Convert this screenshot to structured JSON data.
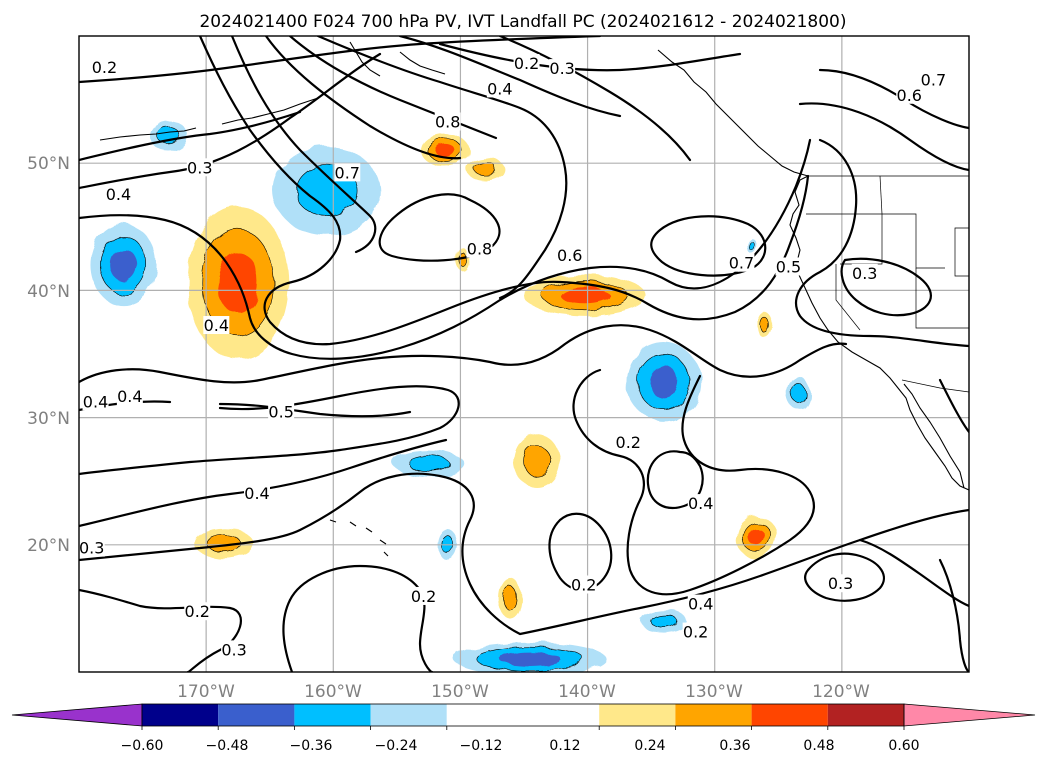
{
  "title": "2024021400 F024 700 hPa PV, IVT Landfall PC (2024021612 - 2024021800)",
  "map": {
    "lon_range": [
      -180,
      -110
    ],
    "lat_range": [
      10,
      60
    ],
    "grid": true,
    "lat_labels": [
      "20°N",
      "30°N",
      "40°N",
      "50°N"
    ],
    "lon_labels": [
      "170°W",
      "160°W",
      "150°W",
      "140°W",
      "130°W",
      "120°W"
    ]
  },
  "colorbar": {
    "ticks": [
      "−0.60",
      "−0.48",
      "−0.36",
      "−0.24",
      "−0.12",
      "0.12",
      "0.24",
      "0.36",
      "0.48",
      "0.60"
    ],
    "levels": [
      -0.6,
      -0.48,
      -0.36,
      -0.24,
      -0.12,
      0.12,
      0.24,
      0.36,
      0.48,
      0.6
    ],
    "colors": [
      "#9932cc",
      "#00008b",
      "#3a5fcd",
      "#00bfff",
      "#b0e0f8",
      "#ffffff",
      "#ffe88a",
      "#ffa500",
      "#ff4500",
      "#b22222",
      "#ff88a8"
    ],
    "extend": "both"
  },
  "contour_labels": [
    "0.2",
    "0.3",
    "0.4",
    "0.5",
    "0.6",
    "0.7",
    "0.8"
  ],
  "clabels": [
    {
      "t": "0.2",
      "lon": -178,
      "lat": 57.5
    },
    {
      "t": "0.3",
      "lon": -170.5,
      "lat": 49.6
    },
    {
      "t": "0.4",
      "lon": -176.9,
      "lat": 47.5
    },
    {
      "t": "0.2",
      "lon": -144.8,
      "lat": 57.8
    },
    {
      "t": "0.3",
      "lon": -142,
      "lat": 57.4
    },
    {
      "t": "0.4",
      "lon": -146.9,
      "lat": 55.8
    },
    {
      "t": "0.8",
      "lon": -151,
      "lat": 53.2
    },
    {
      "t": "0.7",
      "lon": -158.9,
      "lat": 49.2
    },
    {
      "t": "0.8",
      "lon": -148.5,
      "lat": 43.2
    },
    {
      "t": "0.6",
      "lon": -141.4,
      "lat": 42.7
    },
    {
      "t": "0.7",
      "lon": -127.9,
      "lat": 42.1
    },
    {
      "t": "0.5",
      "lon": -124.2,
      "lat": 41.8
    },
    {
      "t": "0.3",
      "lon": -118.2,
      "lat": 41.3
    },
    {
      "t": "0.6",
      "lon": -114.7,
      "lat": 55.3
    },
    {
      "t": "0.7",
      "lon": -112.8,
      "lat": 56.5
    },
    {
      "t": "0.4",
      "lon": -169.2,
      "lat": 37.2
    },
    {
      "t": "0.4",
      "lon": -178.7,
      "lat": 31.2
    },
    {
      "t": "0.4",
      "lon": -176,
      "lat": 31.6
    },
    {
      "t": "0.5",
      "lon": -164.1,
      "lat": 30.4
    },
    {
      "t": "0.4",
      "lon": -166,
      "lat": 24.0
    },
    {
      "t": "0.2",
      "lon": -136.8,
      "lat": 28.0
    },
    {
      "t": "0.4",
      "lon": -131.1,
      "lat": 23.2
    },
    {
      "t": "0.3",
      "lon": -179,
      "lat": 19.7
    },
    {
      "t": "0.2",
      "lon": -170.7,
      "lat": 14.7
    },
    {
      "t": "0.2",
      "lon": -152.9,
      "lat": 15.9
    },
    {
      "t": "0.2",
      "lon": -140.3,
      "lat": 16.8
    },
    {
      "t": "0.4",
      "lon": -131.1,
      "lat": 15.3
    },
    {
      "t": "0.2",
      "lon": -131.5,
      "lat": 13.1
    },
    {
      "t": "0.3",
      "lon": -120.1,
      "lat": 16.9
    },
    {
      "t": "0.3",
      "lon": -167.8,
      "lat": 11.7
    }
  ],
  "shaded_anomalies": [
    {
      "lon": -176.5,
      "lat": 42.0,
      "rx": 2.6,
      "ry": 3.2,
      "levels": [
        -0.12,
        -0.24,
        -0.36
      ]
    },
    {
      "lon": -167.5,
      "lat": 40.6,
      "rx": 4.0,
      "ry": 6.0,
      "levels": [
        0.12,
        0.24,
        0.36
      ]
    },
    {
      "lon": -160.5,
      "lat": 47.8,
      "rx": 4.2,
      "ry": 3.5,
      "levels": [
        -0.12,
        -0.24
      ]
    },
    {
      "lon": -173.0,
      "lat": 52.2,
      "rx": 1.5,
      "ry": 1.2,
      "levels": [
        -0.12,
        -0.24
      ]
    },
    {
      "lon": -151.2,
      "lat": 51.0,
      "rx": 1.9,
      "ry": 1.3,
      "levels": [
        0.12,
        0.24,
        0.36
      ]
    },
    {
      "lon": -148.0,
      "lat": 49.5,
      "rx": 1.5,
      "ry": 0.9,
      "levels": [
        0.12,
        0.24
      ]
    },
    {
      "lon": -149.8,
      "lat": 42.4,
      "rx": 0.5,
      "ry": 0.9,
      "levels": [
        0.12,
        0.24
      ]
    },
    {
      "lon": -140.2,
      "lat": 39.6,
      "rx": 4.8,
      "ry": 1.6,
      "levels": [
        0.12,
        0.24,
        0.36
      ]
    },
    {
      "lon": -134.0,
      "lat": 32.8,
      "rx": 2.9,
      "ry": 3.1,
      "levels": [
        -0.12,
        -0.24,
        -0.36
      ]
    },
    {
      "lon": -126.0,
      "lat": 37.2,
      "rx": 0.6,
      "ry": 1.0,
      "levels": [
        0.12,
        0.24
      ]
    },
    {
      "lon": -123.4,
      "lat": 31.9,
      "rx": 0.9,
      "ry": 1.3,
      "levels": [
        -0.12,
        -0.24
      ]
    },
    {
      "lon": -127.1,
      "lat": 43.5,
      "rx": 0.4,
      "ry": 0.6,
      "levels": [
        -0.12,
        -0.24
      ]
    },
    {
      "lon": -152.5,
      "lat": 26.4,
      "rx": 2.8,
      "ry": 1.0,
      "levels": [
        -0.12,
        -0.24
      ]
    },
    {
      "lon": -144.0,
      "lat": 26.6,
      "rx": 1.8,
      "ry": 2.1,
      "levels": [
        0.12,
        0.24
      ]
    },
    {
      "lon": -168.6,
      "lat": 20.1,
      "rx": 2.3,
      "ry": 1.2,
      "levels": [
        0.12,
        0.24
      ]
    },
    {
      "lon": -151.0,
      "lat": 20.0,
      "rx": 0.8,
      "ry": 1.2,
      "levels": [
        -0.12,
        -0.24
      ]
    },
    {
      "lon": -146.1,
      "lat": 15.8,
      "rx": 0.9,
      "ry": 1.6,
      "levels": [
        0.12,
        0.24
      ]
    },
    {
      "lon": -126.7,
      "lat": 20.6,
      "rx": 1.6,
      "ry": 1.7,
      "levels": [
        0.12,
        0.24,
        0.36
      ]
    },
    {
      "lon": -134.0,
      "lat": 14.0,
      "rx": 1.8,
      "ry": 0.9,
      "levels": [
        -0.12,
        -0.24
      ]
    },
    {
      "lon": -144.5,
      "lat": 11.0,
      "rx": 6.0,
      "ry": 1.3,
      "levels": [
        -0.12,
        -0.24,
        -0.36
      ]
    }
  ]
}
